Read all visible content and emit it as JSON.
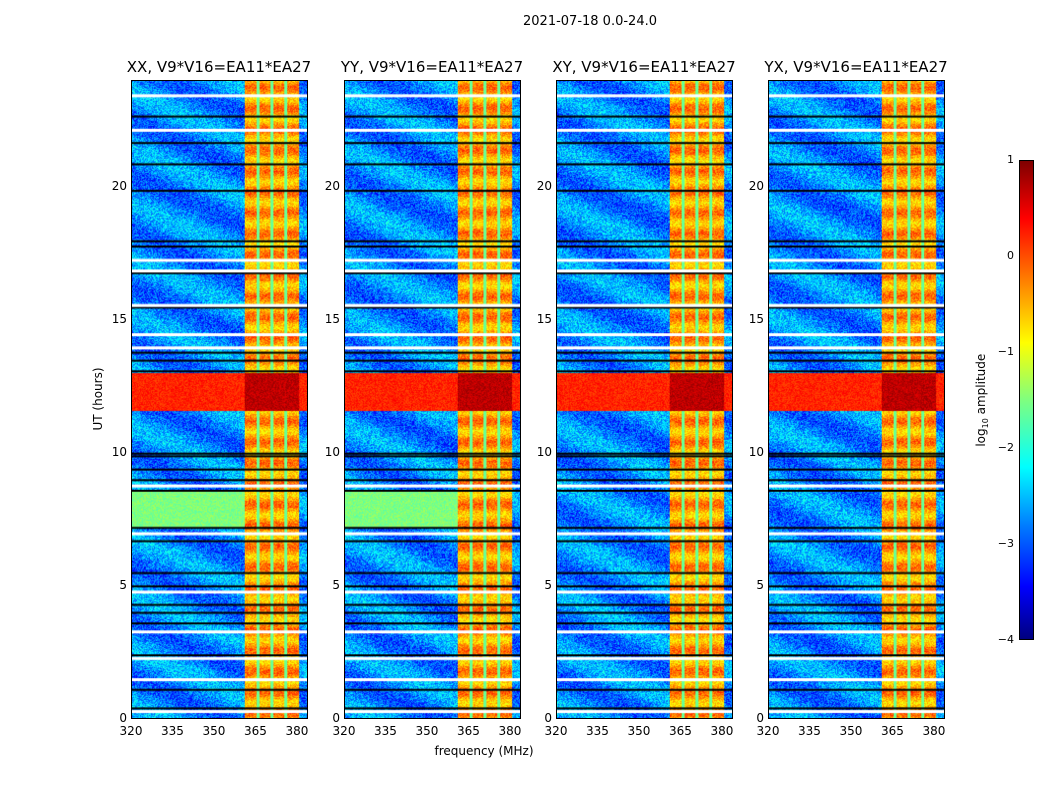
{
  "chart_data": {
    "type": "heatmap",
    "title": "2021-07-18 0.0-24.0",
    "xlabel": "frequency (MHz)",
    "ylabel": "UT (hours)",
    "xlim": [
      320,
      384
    ],
    "ylim": [
      0,
      24
    ],
    "xticks": [
      "320",
      "335",
      "350",
      "365",
      "380"
    ],
    "yticks": [
      "0",
      "5",
      "10",
      "15",
      "20"
    ],
    "panels": [
      {
        "title": "XX, V9*V16=EA11*EA27"
      },
      {
        "title": "YY, V9*V16=EA11*EA27"
      },
      {
        "title": "XY, V9*V16=EA11*EA27"
      },
      {
        "title": "YX, V9*V16=EA11*EA27"
      }
    ],
    "colorbar": {
      "label_main": "log",
      "label_sub": "10",
      "label_rest": " amplitude",
      "range": [
        -4,
        1
      ],
      "ticks": [
        "1",
        "0",
        "−1",
        "−2",
        "−3",
        "−4"
      ],
      "colormap": "jet"
    },
    "background_level": -2.7,
    "band_mhz": [
      361,
      381
    ],
    "band_level": -0.4,
    "band_gaps_mhz": [
      366,
      371,
      376
    ],
    "rfi_hours": [
      11.6,
      13.0
    ],
    "flagged_white_hours": [
      0.3,
      1.5,
      2.3,
      3.3,
      4.8,
      7.0,
      8.8,
      14.0,
      14.5,
      15.6,
      16.9,
      17.3,
      22.2,
      23.5
    ],
    "black_line_hours": [
      0.4,
      1.1,
      2.4,
      3.6,
      4.0,
      4.3,
      5.0,
      5.5,
      6.7,
      7.2,
      8.6,
      9.0,
      9.4,
      9.9,
      10.0,
      13.1,
      13.5,
      13.8,
      15.5,
      16.8,
      17.8,
      18.0,
      19.9,
      20.9,
      21.7,
      22.7
    ]
  }
}
